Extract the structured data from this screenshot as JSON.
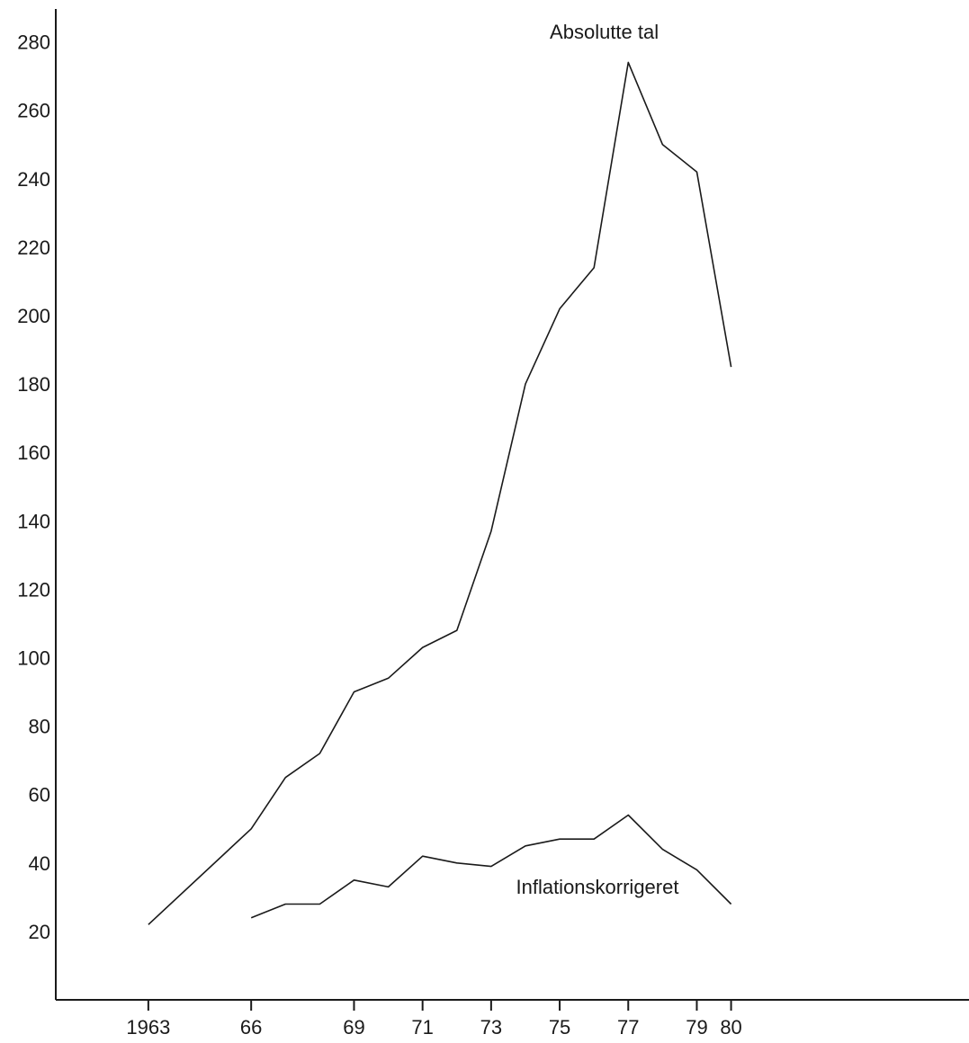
{
  "chart_data": {
    "type": "line",
    "title": "",
    "xlabel": "",
    "ylabel": "",
    "xlim": [
      1960.3,
      1987.3
    ],
    "ylim": [
      0,
      287
    ],
    "grid": false,
    "legend": "none",
    "x_ticks": [
      {
        "value": 1963,
        "label": "1963"
      },
      {
        "value": 1966,
        "label": "66"
      },
      {
        "value": 1969,
        "label": "69"
      },
      {
        "value": 1971,
        "label": "71"
      },
      {
        "value": 1973,
        "label": "73"
      },
      {
        "value": 1975,
        "label": "75"
      },
      {
        "value": 1977,
        "label": "77"
      },
      {
        "value": 1979,
        "label": "79"
      },
      {
        "value": 1980,
        "label": "80"
      }
    ],
    "y_ticks": [
      {
        "value": 20,
        "label": "20"
      },
      {
        "value": 40,
        "label": "40"
      },
      {
        "value": 60,
        "label": "60"
      },
      {
        "value": 80,
        "label": "80"
      },
      {
        "value": 100,
        "label": "100"
      },
      {
        "value": 120,
        "label": "120"
      },
      {
        "value": 140,
        "label": "140"
      },
      {
        "value": 160,
        "label": "160"
      },
      {
        "value": 180,
        "label": "180"
      },
      {
        "value": 200,
        "label": "200"
      },
      {
        "value": 220,
        "label": "220"
      },
      {
        "value": 240,
        "label": "240"
      },
      {
        "value": 260,
        "label": "260"
      },
      {
        "value": 280,
        "label": "280"
      }
    ],
    "series": [
      {
        "name": "Absolutte tal",
        "label_anchor": {
          "x": 1976.3,
          "y": 281
        },
        "x": [
          1963,
          1966,
          1967,
          1968,
          1969,
          1970,
          1971,
          1972,
          1973,
          1974,
          1975,
          1976,
          1977,
          1978,
          1979,
          1980
        ],
        "values": [
          22,
          50,
          65,
          72,
          90,
          94,
          103,
          108,
          137,
          180,
          202,
          214,
          274,
          250,
          242,
          185
        ]
      },
      {
        "name": "Inflationskorrigeret",
        "label_anchor": {
          "x": 1976.1,
          "y": 31
        },
        "x": [
          1966,
          1967,
          1968,
          1969,
          1970,
          1971,
          1972,
          1973,
          1974,
          1975,
          1976,
          1977,
          1978,
          1979,
          1980
        ],
        "values": [
          24,
          28,
          28,
          35,
          33,
          42,
          40,
          39,
          45,
          47,
          47,
          54,
          44,
          38,
          28
        ]
      }
    ]
  }
}
